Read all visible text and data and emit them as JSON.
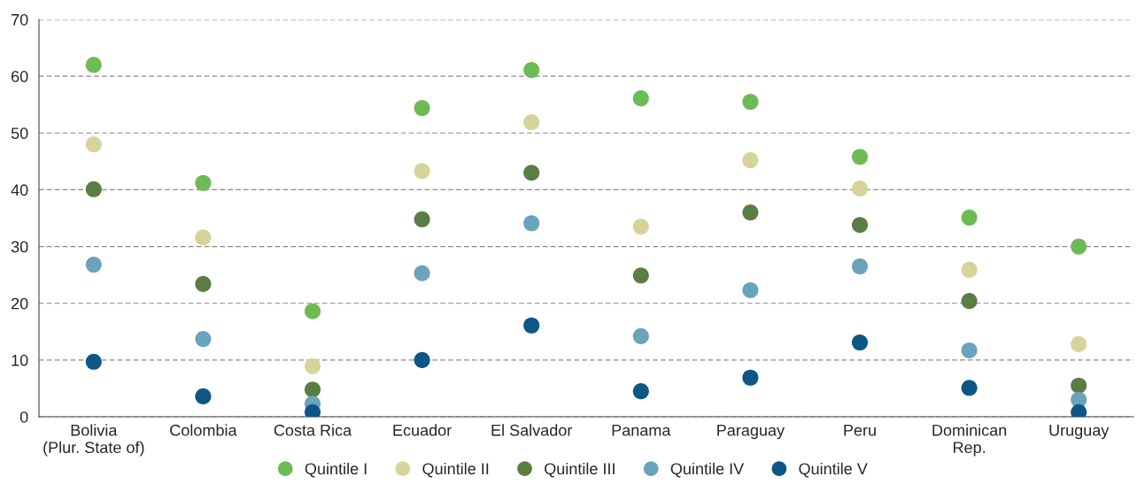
{
  "chart_data": {
    "type": "scatter",
    "categories": [
      "Bolivia\n(Plur. State of)",
      "Colombia",
      "Costa Rica",
      "Ecuador",
      "El Salvador",
      "Panama",
      "Paraguay",
      "Peru",
      "Dominican\nRep.",
      "Uruguay"
    ],
    "series": [
      {
        "name": "Quintile I",
        "color": "#6dbb55",
        "values": [
          62.0,
          41.2,
          18.6,
          54.4,
          61.1,
          56.1,
          55.5,
          45.8,
          35.1,
          30.0
        ]
      },
      {
        "name": "Quintile II",
        "color": "#d6d49a",
        "values": [
          48.0,
          31.6,
          8.9,
          43.3,
          51.9,
          33.5,
          45.2,
          40.2,
          25.9,
          12.8
        ]
      },
      {
        "name": "Quintile III",
        "color": "#5a7d44",
        "values": [
          40.1,
          23.4,
          4.8,
          34.8,
          43.0,
          24.9,
          36.0,
          33.8,
          20.4,
          5.5
        ]
      },
      {
        "name": "Quintile IV",
        "color": "#6aa3bb",
        "values": [
          26.8,
          13.7,
          2.3,
          25.3,
          34.1,
          14.2,
          22.3,
          26.5,
          11.7,
          3.0
        ]
      },
      {
        "name": "Quintile V",
        "color": "#0d5686",
        "values": [
          9.7,
          3.6,
          0.8,
          10.0,
          16.1,
          4.5,
          6.9,
          13.1,
          5.1,
          0.8
        ]
      }
    ],
    "ylim": [
      0,
      70
    ],
    "yticks": [
      0,
      10,
      20,
      30,
      40,
      50,
      60,
      70
    ],
    "grid": "y",
    "legend": "bottom",
    "marker": "circle"
  }
}
